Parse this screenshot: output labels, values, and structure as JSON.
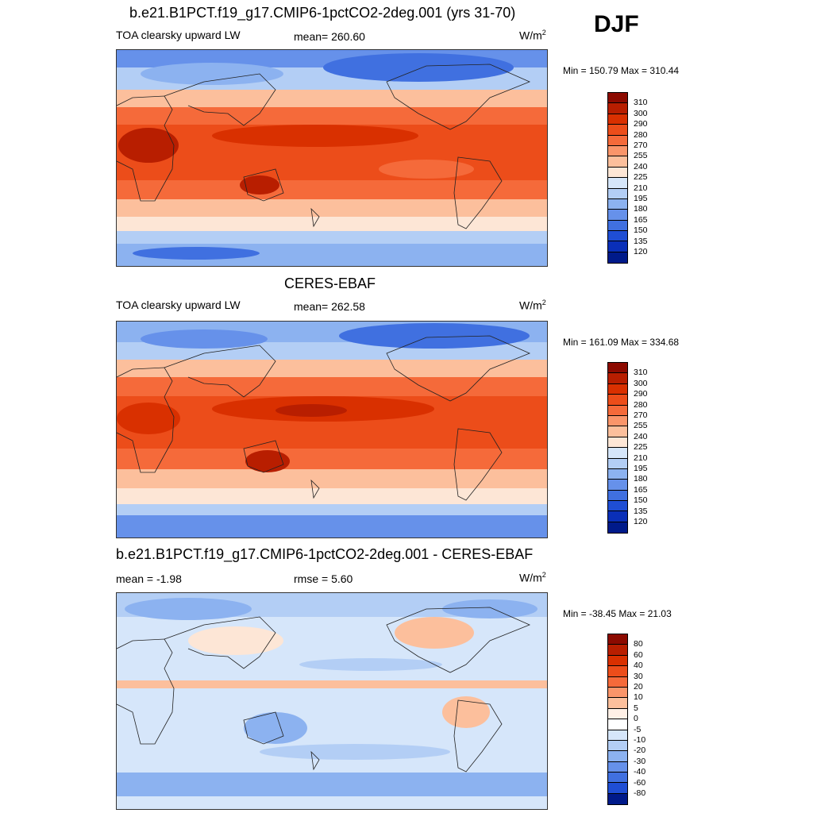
{
  "season": "DJF",
  "panels": [
    {
      "title": "b.e21.B1PCT.f19_g17.CMIP6-1pctCO2-2deg.001 (yrs 31-70)",
      "variable": "TOA clearsky upward LW",
      "stat": "mean= 260.60",
      "units_base": "W/m",
      "units_exp": "2",
      "minmax": "Min = 150.79 Max = 310.44",
      "colorbar_labels": [
        "310",
        "300",
        "290",
        "280",
        "270",
        "255",
        "240",
        "225",
        "210",
        "195",
        "180",
        "165",
        "150",
        "135",
        "120"
      ],
      "colorbar_colors": [
        "#8c0a00",
        "#b81e00",
        "#d93000",
        "#ec4d1a",
        "#f56a3a",
        "#fa956a",
        "#fcbf9c",
        "#fde6d6",
        "#d6e6fa",
        "#b3cef5",
        "#8cb2f0",
        "#6691ea",
        "#4070e0",
        "#1f4ed4",
        "#0a2fb8",
        "#001a8a"
      ]
    },
    {
      "title": "CERES-EBAF",
      "variable": "TOA clearsky upward LW",
      "stat": "mean= 262.58",
      "units_base": "W/m",
      "units_exp": "2",
      "minmax": "Min = 161.09 Max = 334.68",
      "colorbar_labels": [
        "310",
        "300",
        "290",
        "280",
        "270",
        "255",
        "240",
        "225",
        "210",
        "195",
        "180",
        "165",
        "150",
        "135",
        "120"
      ],
      "colorbar_colors": [
        "#8c0a00",
        "#b81e00",
        "#d93000",
        "#ec4d1a",
        "#f56a3a",
        "#fa956a",
        "#fcbf9c",
        "#fde6d6",
        "#d6e6fa",
        "#b3cef5",
        "#8cb2f0",
        "#6691ea",
        "#4070e0",
        "#1f4ed4",
        "#0a2fb8",
        "#001a8a"
      ]
    },
    {
      "title": "b.e21.B1PCT.f19_g17.CMIP6-1pctCO2-2deg.001 - CERES-EBAF",
      "stat_left": "mean =  -1.98",
      "stat_mid": "rmse =   5.60",
      "units_base": "W/m",
      "units_exp": "2",
      "minmax": "Min = -38.45 Max =  21.03",
      "colorbar_labels": [
        "80",
        "60",
        "40",
        "30",
        "20",
        "10",
        "5",
        "0",
        "-5",
        "-10",
        "-20",
        "-30",
        "-40",
        "-60",
        "-80"
      ],
      "colorbar_colors": [
        "#8c0a00",
        "#b81e00",
        "#d93000",
        "#ec4d1a",
        "#f56a3a",
        "#fa956a",
        "#fcbf9c",
        "#fff0e6",
        "#ffffff",
        "#d6e6fa",
        "#b3cef5",
        "#8cb2f0",
        "#6691ea",
        "#4070e0",
        "#1f4ed4",
        "#001a8a"
      ]
    }
  ]
}
